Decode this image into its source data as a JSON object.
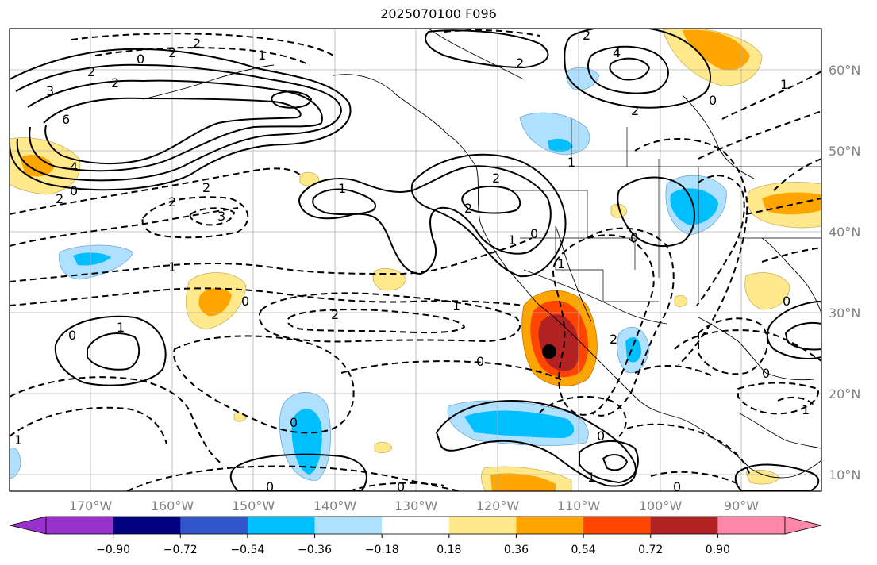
{
  "title": "2025070100 F096",
  "lon_labels": [
    "170°W",
    "160°W",
    "150°W",
    "140°W",
    "130°W",
    "120°W",
    "110°W",
    "100°W",
    "90°W"
  ],
  "lat_labels": [
    "60°N",
    "50°N",
    "40°N",
    "30°N",
    "20°N",
    "10°N"
  ],
  "colorbar": {
    "colors": [
      "#9932cc",
      "#000080",
      "#3355cc",
      "#00bfff",
      "#b0e0ff",
      "#ffffff",
      "#ffe98a",
      "#ffa500",
      "#ff4500",
      "#b22222",
      "#ff88aa"
    ],
    "tick_labels": [
      "−0.90",
      "−0.72",
      "−0.54",
      "−0.36",
      "−0.18",
      "0.18",
      "0.36",
      "0.54",
      "0.72",
      "0.90"
    ]
  },
  "contour_labels": [
    "2",
    "2",
    "0",
    "1",
    "2",
    "2",
    "3",
    "6",
    "4",
    "0",
    "2",
    "3",
    "2",
    "1",
    "2",
    "0",
    "1",
    "0",
    "2",
    "1",
    "0",
    "1",
    "2",
    "0",
    "0",
    "1",
    "0",
    "0",
    "2",
    "1",
    "2",
    "0",
    "4",
    "2",
    "2",
    "2",
    "1",
    "0",
    "1",
    "0",
    "1",
    "0",
    "0",
    "1",
    "0",
    "1"
  ],
  "marker": {
    "label": "storm-center-marker"
  }
}
